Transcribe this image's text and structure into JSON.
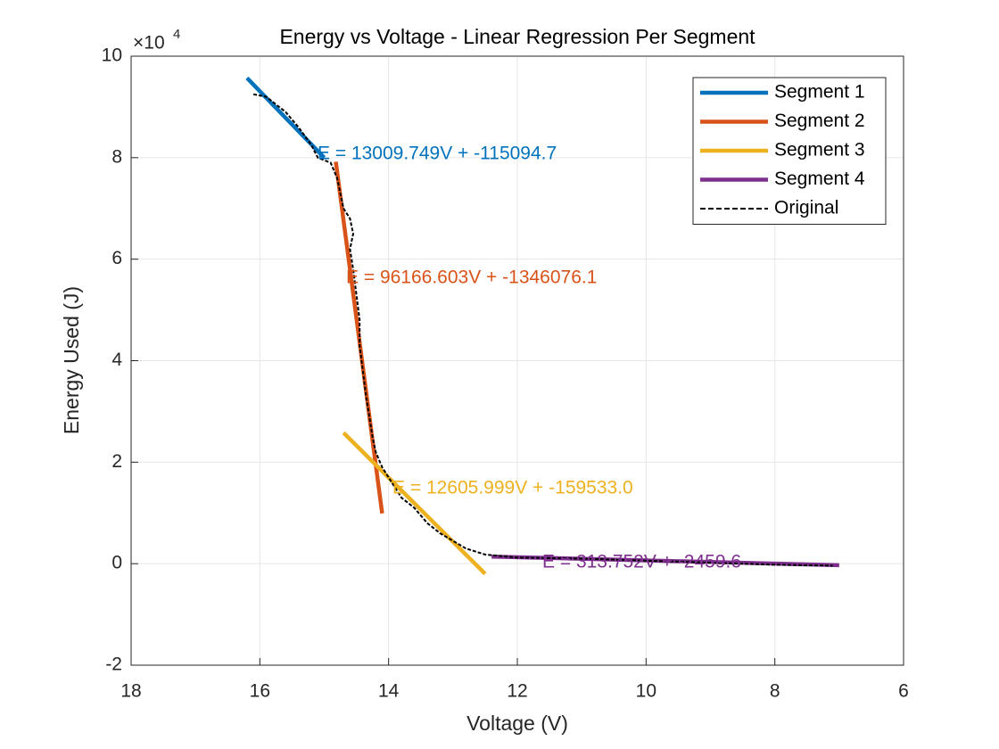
{
  "chart_data": {
    "type": "line",
    "title": "Energy vs Voltage - Linear Regression Per Segment",
    "x_label": "Voltage (V)",
    "y_label": "Energy Used (J)",
    "y_exponent": {
      "base": "×10",
      "power": "4"
    },
    "xlim": [
      18,
      6
    ],
    "xticks": [
      18,
      16,
      14,
      12,
      10,
      8,
      6
    ],
    "ylim": [
      -2,
      10
    ],
    "yticks": [
      -2,
      0,
      2,
      4,
      6,
      8,
      10
    ],
    "grid": true,
    "legend": "upper right",
    "x_reversed": true,
    "series": [
      {
        "name": "Segment 1",
        "color": "#0072bd",
        "style": "solid",
        "x": [
          16.2,
          15.0
        ],
        "values": [
          9.57,
          8.0
        ],
        "label": "E = 13009.749V + -115094.7"
      },
      {
        "name": "Segment 2",
        "color": "#d95319",
        "style": "solid",
        "x": [
          14.82,
          14.1
        ],
        "values": [
          7.92,
          0.99
        ],
        "label": "E = 96166.603V + -1346076.1"
      },
      {
        "name": "Segment 3",
        "color": "#edb120",
        "style": "solid",
        "x": [
          14.7,
          12.5
        ],
        "values": [
          2.58,
          -0.2
        ],
        "label": "E = 12605.999V + -159533.0"
      },
      {
        "name": "Segment 4",
        "color": "#7e2f8e",
        "style": "solid",
        "x": [
          12.4,
          7.0
        ],
        "values": [
          0.14,
          -0.03
        ],
        "label": "E = 313.752V + -2459.6"
      },
      {
        "name": "Original",
        "color": "#000000",
        "style": "dashed",
        "x": [
          16.1,
          15.9,
          15.6,
          15.4,
          15.2,
          15.1,
          15.0,
          14.9,
          14.8,
          14.7,
          14.6,
          14.55,
          14.6,
          14.55,
          14.5,
          14.45,
          14.45,
          14.4,
          14.35,
          14.3,
          14.25,
          14.2,
          14.1,
          14.0,
          13.9,
          13.8,
          13.6,
          13.4,
          13.2,
          13.0,
          12.8,
          12.5,
          12.0,
          11.0,
          10.0,
          9.0,
          8.0,
          7.1
        ],
        "values": [
          9.25,
          9.2,
          8.9,
          8.6,
          8.25,
          8.0,
          7.95,
          7.9,
          7.6,
          7.0,
          6.8,
          6.5,
          6.2,
          5.8,
          5.3,
          4.8,
          4.3,
          3.8,
          3.3,
          2.9,
          2.5,
          2.2,
          1.9,
          1.7,
          1.5,
          1.3,
          1.1,
          0.8,
          0.6,
          0.45,
          0.3,
          0.18,
          0.12,
          0.1,
          0.06,
          0.02,
          -0.02,
          -0.04
        ]
      }
    ]
  }
}
